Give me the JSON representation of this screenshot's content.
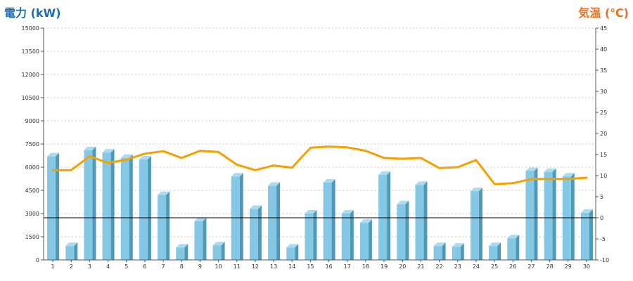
{
  "chart_data": {
    "type": "bar-line",
    "title_left": "電力 (kW)",
    "title_right": "気温 (℃)",
    "categories": [
      "1",
      "2",
      "3",
      "4",
      "5",
      "6",
      "7",
      "8",
      "9",
      "10",
      "11",
      "12",
      "13",
      "14",
      "15",
      "16",
      "17",
      "18",
      "19",
      "20",
      "21",
      "22",
      "23",
      "24",
      "25",
      "26",
      "27",
      "28",
      "29",
      "30"
    ],
    "y_left": {
      "min": 0,
      "max": 15000,
      "ticks": [
        "0",
        "1500",
        "3000",
        "4500",
        "6000",
        "7500",
        "9000",
        "10500",
        "12000",
        "13500",
        "15000"
      ]
    },
    "y_right": {
      "min": -10,
      "max": 45,
      "ticks": [
        "-10",
        "-5",
        "0",
        "5",
        "10",
        "15",
        "20",
        "25",
        "30",
        "35",
        "40",
        "45"
      ]
    },
    "reference_line_right": 0,
    "series": [
      {
        "type": "bar",
        "axis": "left",
        "values": [
          6700,
          900,
          7100,
          6950,
          6600,
          6500,
          4200,
          800,
          2500,
          950,
          5400,
          3300,
          4800,
          800,
          3000,
          5000,
          3000,
          2400,
          5500,
          3600,
          4850,
          900,
          850,
          4450,
          900,
          1400,
          5750,
          5700,
          5400,
          3050
        ]
      },
      {
        "type": "line",
        "axis": "right",
        "values": [
          11.3,
          11.3,
          14.6,
          13.0,
          13.8,
          15.2,
          15.8,
          14.2,
          15.9,
          15.6,
          12.6,
          11.3,
          12.4,
          11.9,
          16.6,
          16.9,
          16.7,
          15.9,
          14.2,
          14.0,
          14.2,
          11.8,
          12.0,
          13.7,
          8.0,
          8.2,
          9.2,
          9.2,
          9.2,
          9.5
        ]
      }
    ],
    "colors": {
      "bar_front": "#85c8e6",
      "bar_side": "#4f98b8",
      "bar_top": "#a9dcef",
      "line": "#f5a000",
      "title_left": "#1a6db5",
      "title_right": "#e8711f"
    },
    "grid": true
  }
}
